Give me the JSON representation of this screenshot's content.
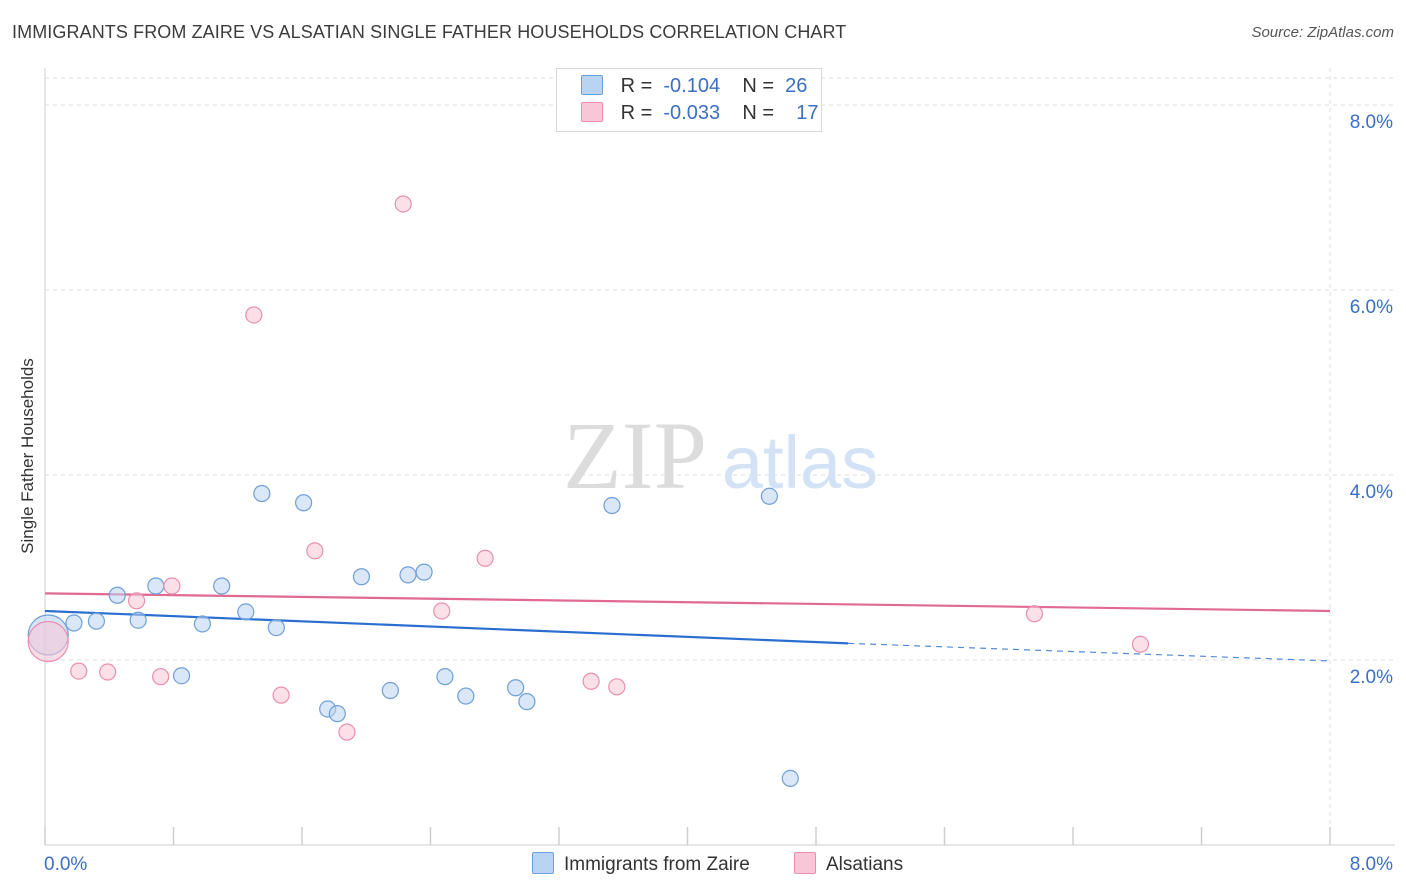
{
  "title": "IMMIGRANTS FROM ZAIRE VS ALSATIAN SINGLE FATHER HOUSEHOLDS CORRELATION CHART",
  "source": "Source: ZipAtlas.com",
  "watermark": {
    "zip": "ZIP",
    "atlas": "atlas"
  },
  "legend": {
    "rows": [
      {
        "r_label": "R =",
        "r_value": "-0.104",
        "n_label": "N =",
        "n_value": "26"
      },
      {
        "r_label": "R =",
        "r_value": "-0.033",
        "n_label": "N =",
        "n_value": "17"
      }
    ]
  },
  "colors": {
    "series1_fill": "#b9d3f2",
    "series1_stroke": "#6f9fd8",
    "series1_line": "#2a6fcf",
    "series2_fill": "#f8c6d6",
    "series2_stroke": "#e98fae",
    "series2_line": "#e06a93",
    "axis_label": "#3a6fc4"
  },
  "chart_data": {
    "type": "scatter",
    "ylabel": "Single Father Households",
    "x_tick_labels": [
      "0.0%",
      "8.0%"
    ],
    "y_tick_labels": [
      "2.0%",
      "4.0%",
      "6.0%",
      "8.0%"
    ],
    "xlim": [
      0,
      8
    ],
    "ylim": [
      0,
      8.4
    ],
    "grid": true,
    "legend_placement": "top-center",
    "series": [
      {
        "name": "Immigrants from Zaire",
        "points": [
          [
            0.02,
            2.27
          ],
          [
            0.18,
            2.4
          ],
          [
            0.32,
            2.42
          ],
          [
            0.45,
            2.7
          ],
          [
            0.58,
            2.43
          ],
          [
            0.69,
            2.8
          ],
          [
            0.85,
            1.83
          ],
          [
            0.98,
            2.39
          ],
          [
            1.1,
            2.8
          ],
          [
            1.25,
            2.52
          ],
          [
            1.35,
            3.8
          ],
          [
            1.44,
            2.35
          ],
          [
            1.61,
            3.7
          ],
          [
            1.76,
            1.47
          ],
          [
            1.82,
            1.42
          ],
          [
            1.97,
            2.9
          ],
          [
            2.15,
            1.67
          ],
          [
            2.26,
            2.92
          ],
          [
            2.36,
            2.95
          ],
          [
            2.49,
            1.82
          ],
          [
            2.62,
            1.61
          ],
          [
            2.93,
            1.7
          ],
          [
            3.0,
            1.55
          ],
          [
            3.53,
            3.67
          ],
          [
            4.51,
            3.77
          ],
          [
            4.64,
            0.72
          ]
        ],
        "trend": {
          "x0": 0,
          "y0": 2.53,
          "x1": 5.0,
          "y1": 2.18,
          "dashed_to_x": 8.0,
          "dashed_to_y": 1.99
        }
      },
      {
        "name": "Alsatians",
        "points": [
          [
            0.02,
            2.2
          ],
          [
            0.21,
            1.88
          ],
          [
            0.39,
            1.87
          ],
          [
            0.57,
            2.64
          ],
          [
            0.72,
            1.82
          ],
          [
            0.79,
            2.8
          ],
          [
            1.3,
            5.73
          ],
          [
            1.47,
            1.62
          ],
          [
            1.68,
            3.18
          ],
          [
            1.88,
            1.22
          ],
          [
            2.23,
            6.93
          ],
          [
            2.47,
            2.53
          ],
          [
            2.74,
            3.1
          ],
          [
            3.4,
            1.77
          ],
          [
            3.56,
            1.71
          ],
          [
            6.16,
            2.5
          ],
          [
            6.82,
            2.17
          ]
        ],
        "trend": {
          "x0": 0,
          "y0": 2.72,
          "x1": 8.0,
          "y1": 2.53
        }
      }
    ]
  }
}
